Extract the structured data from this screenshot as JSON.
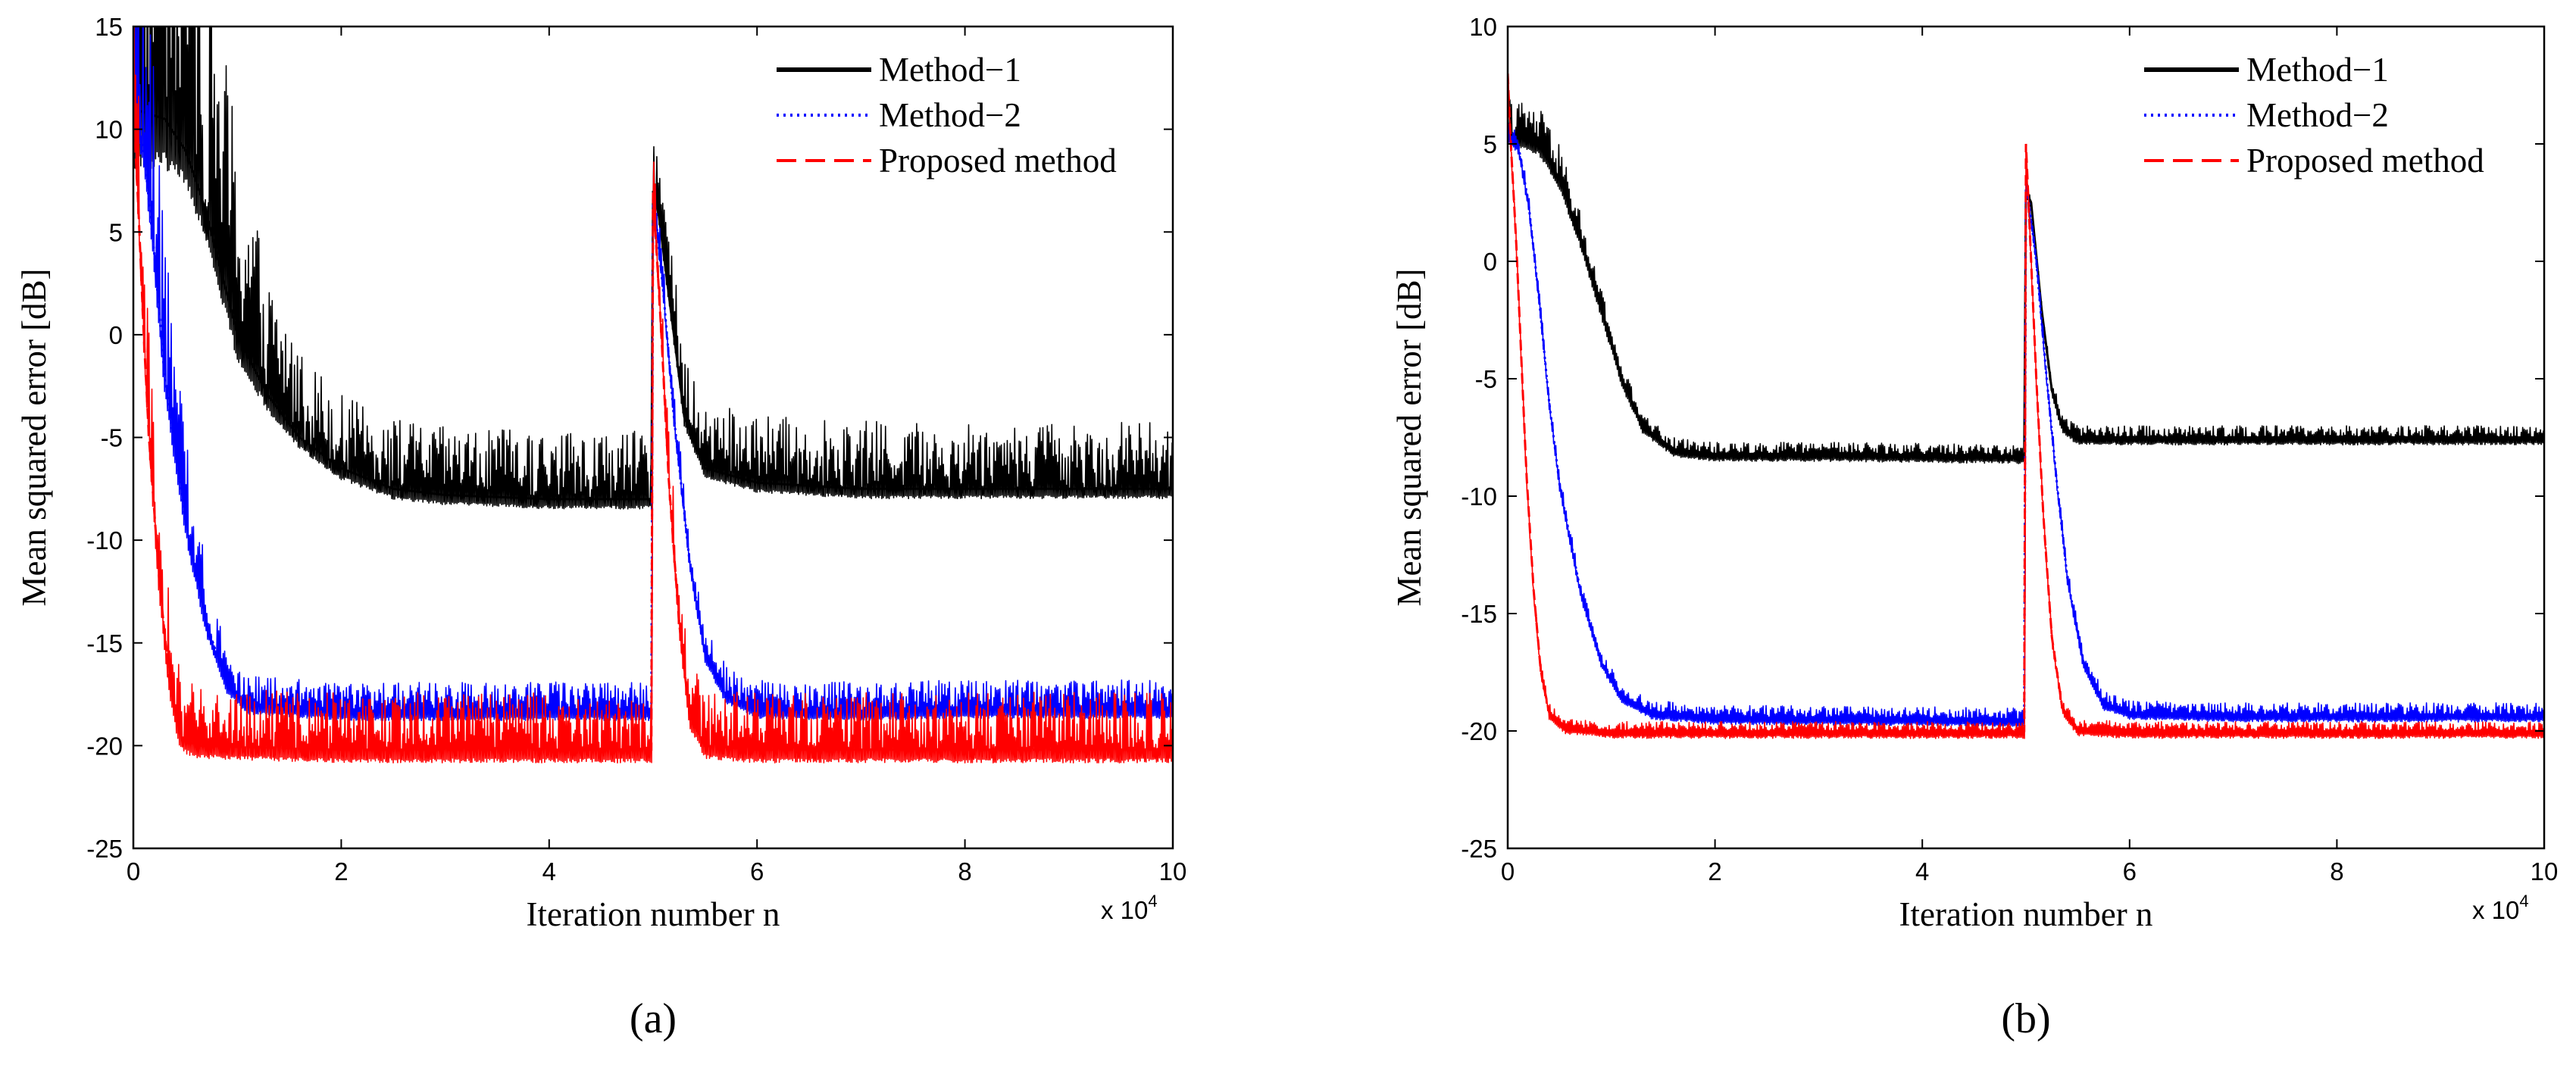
{
  "chart_data": [
    {
      "type": "line",
      "caption": "(a)",
      "xlabel": "Iteration number n",
      "ylabel": "Mean squared error [dB]",
      "x_multiplier": "x 10",
      "x_multiplier_exp": "4",
      "xlim": [
        0,
        10
      ],
      "ylim": [
        -25,
        15
      ],
      "xticks": [
        "0",
        "2",
        "4",
        "6",
        "8",
        "10"
      ],
      "yticks": [
        "15",
        "10",
        "5",
        "0",
        "-5",
        "-10",
        "-15",
        "-20",
        "-25"
      ],
      "legend_position": "top-right",
      "series": [
        {
          "name": "Method−1",
          "color": "#000000",
          "style": "solid",
          "noise_band": [
            [
              0,
              2.0,
              20.0
            ],
            [
              0.3,
              1.5,
              19.0
            ],
            [
              0.6,
              1.0,
              17.0
            ],
            [
              0.8,
              0.9,
              13.0
            ],
            [
              1.0,
              0.8,
              10.0
            ],
            [
              1.3,
              0.5,
              6.0
            ],
            [
              1.6,
              0.35,
              4.5
            ],
            [
              2.0,
              0.35,
              3.6
            ],
            [
              3.0,
              0.3,
              3.3
            ],
            [
              4.99,
              0.3,
              3.3
            ],
            [
              5.3,
              0.3,
              3.3
            ],
            [
              10.0,
              0.3,
              3.3
            ]
          ],
          "points": [
            [
              0,
              11.0
            ],
            [
              0.3,
              10.5
            ],
            [
              0.5,
              9.0
            ],
            [
              0.7,
              6.0
            ],
            [
              1.0,
              0.0
            ],
            [
              1.3,
              -3.0
            ],
            [
              1.6,
              -5.0
            ],
            [
              2.0,
              -6.5
            ],
            [
              2.5,
              -7.5
            ],
            [
              3.0,
              -7.8
            ],
            [
              4.0,
              -8.0
            ],
            [
              4.99,
              -8.0
            ],
            [
              5.0,
              7.0
            ],
            [
              5.05,
              6.0
            ],
            [
              5.15,
              2.0
            ],
            [
              5.3,
              -4.0
            ],
            [
              5.5,
              -6.5
            ],
            [
              6.0,
              -7.2
            ],
            [
              7.0,
              -7.5
            ],
            [
              8.0,
              -7.5
            ],
            [
              9.0,
              -7.5
            ],
            [
              10.0,
              -7.5
            ]
          ]
        },
        {
          "name": "Method−2",
          "color": "#0000ff",
          "style": "dotted",
          "noise_band": [
            [
              0,
              0.5,
              10.0
            ],
            [
              0.2,
              0.6,
              9.0
            ],
            [
              0.4,
              0.6,
              5.0
            ],
            [
              0.7,
              0.4,
              3.0
            ],
            [
              1.0,
              0.3,
              1.4
            ],
            [
              10.0,
              0.3,
              1.4
            ]
          ],
          "points": [
            [
              0,
              11.0
            ],
            [
              0.1,
              9.0
            ],
            [
              0.2,
              4.0
            ],
            [
              0.3,
              -2.0
            ],
            [
              0.5,
              -9.0
            ],
            [
              0.7,
              -14.0
            ],
            [
              0.9,
              -17.0
            ],
            [
              1.1,
              -18.0
            ],
            [
              2.0,
              -18.3
            ],
            [
              4.99,
              -18.3
            ],
            [
              5.0,
              7.0
            ],
            [
              5.1,
              2.0
            ],
            [
              5.2,
              -4.0
            ],
            [
              5.35,
              -11.0
            ],
            [
              5.5,
              -15.5
            ],
            [
              5.7,
              -17.5
            ],
            [
              6.0,
              -18.2
            ],
            [
              7.0,
              -18.3
            ],
            [
              8.0,
              -18.2
            ],
            [
              9.0,
              -18.2
            ],
            [
              10.0,
              -18.2
            ]
          ]
        },
        {
          "name": "Proposed method",
          "color": "#ff0000",
          "style": "dashed",
          "noise_band": [
            [
              0,
              0.5,
              6.0
            ],
            [
              0.2,
              0.6,
              5.0
            ],
            [
              0.4,
              0.5,
              3.5
            ],
            [
              0.6,
              0.4,
              2.8
            ],
            [
              10.0,
              0.4,
              2.8
            ]
          ],
          "points": [
            [
              0,
              11.0
            ],
            [
              0.05,
              6.0
            ],
            [
              0.1,
              0.0
            ],
            [
              0.15,
              -5.0
            ],
            [
              0.25,
              -12.0
            ],
            [
              0.35,
              -17.0
            ],
            [
              0.45,
              -19.5
            ],
            [
              0.6,
              -20.0
            ],
            [
              2.0,
              -20.2
            ],
            [
              4.99,
              -20.2
            ],
            [
              5.0,
              7.0
            ],
            [
              5.08,
              0.0
            ],
            [
              5.15,
              -7.0
            ],
            [
              5.25,
              -14.0
            ],
            [
              5.35,
              -18.5
            ],
            [
              5.5,
              -20.0
            ],
            [
              6.0,
              -20.2
            ],
            [
              7.0,
              -20.2
            ],
            [
              8.0,
              -20.2
            ],
            [
              9.0,
              -20.2
            ],
            [
              10.0,
              -20.2
            ]
          ]
        }
      ]
    },
    {
      "type": "line",
      "caption": "(b)",
      "xlabel": "Iteration number n",
      "ylabel": "Mean squared error [dB]",
      "x_multiplier": "x 10",
      "x_multiplier_exp": "4",
      "xlim": [
        0,
        10
      ],
      "ylim": [
        -25,
        10
      ],
      "xticks": [
        "0",
        "2",
        "4",
        "6",
        "8",
        "10"
      ],
      "yticks": [
        "10",
        "5",
        "0",
        "-5",
        "-10",
        "-15",
        "-20",
        "-25"
      ],
      "legend_position": "top-right",
      "series": [
        {
          "name": "Method−1",
          "color": "#000000",
          "style": "solid",
          "noise_band": [
            [
              0,
              0.3,
              1.5
            ],
            [
              0.4,
              0.3,
              1.6
            ],
            [
              0.8,
              0.25,
              1.0
            ],
            [
              1.3,
              0.2,
              0.5
            ],
            [
              2.0,
              0.2,
              0.5
            ],
            [
              10.0,
              0.2,
              0.5
            ]
          ],
          "points": [
            [
              0,
              5.5
            ],
            [
              0.3,
              5.0
            ],
            [
              0.5,
              3.5
            ],
            [
              0.7,
              1.0
            ],
            [
              0.9,
              -2.0
            ],
            [
              1.1,
              -5.0
            ],
            [
              1.3,
              -7.0
            ],
            [
              1.6,
              -8.0
            ],
            [
              2.0,
              -8.2
            ],
            [
              3.0,
              -8.2
            ],
            [
              4.99,
              -8.3
            ],
            [
              5.0,
              3.0
            ],
            [
              5.05,
              2.5
            ],
            [
              5.15,
              -2.0
            ],
            [
              5.25,
              -5.5
            ],
            [
              5.35,
              -7.0
            ],
            [
              5.5,
              -7.5
            ],
            [
              6.0,
              -7.5
            ],
            [
              7.0,
              -7.5
            ],
            [
              8.0,
              -7.5
            ],
            [
              9.0,
              -7.5
            ],
            [
              10.0,
              -7.5
            ]
          ]
        },
        {
          "name": "Method−2",
          "color": "#0000ff",
          "style": "dotted",
          "noise_band": [
            [
              0,
              0.3,
              0.5
            ],
            [
              0.3,
              0.2,
              0.5
            ],
            [
              10.0,
              0.2,
              0.5
            ]
          ],
          "points": [
            [
              0,
              5.5
            ],
            [
              0.1,
              5.0
            ],
            [
              0.2,
              2.5
            ],
            [
              0.3,
              -1.5
            ],
            [
              0.4,
              -6.0
            ],
            [
              0.5,
              -9.5
            ],
            [
              0.7,
              -14.0
            ],
            [
              0.9,
              -17.0
            ],
            [
              1.1,
              -18.5
            ],
            [
              1.4,
              -19.2
            ],
            [
              2.0,
              -19.4
            ],
            [
              4.99,
              -19.5
            ],
            [
              5.0,
              3.5
            ],
            [
              5.1,
              0.0
            ],
            [
              5.2,
              -5.0
            ],
            [
              5.3,
              -9.5
            ],
            [
              5.4,
              -13.5
            ],
            [
              5.55,
              -17.0
            ],
            [
              5.75,
              -18.8
            ],
            [
              6.0,
              -19.2
            ],
            [
              7.0,
              -19.3
            ],
            [
              8.0,
              -19.3
            ],
            [
              9.0,
              -19.3
            ],
            [
              10.0,
              -19.3
            ]
          ]
        },
        {
          "name": "Proposed method",
          "color": "#ff0000",
          "style": "dashed",
          "noise_band": [
            [
              0,
              0.3,
              0.5
            ],
            [
              0.3,
              0.2,
              0.4
            ],
            [
              10.0,
              0.2,
              0.4
            ]
          ],
          "points": [
            [
              0,
              8.0
            ],
            [
              0.03,
              5.0
            ],
            [
              0.08,
              1.0
            ],
            [
              0.13,
              -4.0
            ],
            [
              0.18,
              -9.0
            ],
            [
              0.25,
              -14.0
            ],
            [
              0.32,
              -17.5
            ],
            [
              0.4,
              -19.2
            ],
            [
              0.55,
              -19.8
            ],
            [
              1.0,
              -20.0
            ],
            [
              4.99,
              -20.0
            ],
            [
              5.0,
              5.0
            ],
            [
              5.05,
              0.0
            ],
            [
              5.1,
              -5.0
            ],
            [
              5.17,
              -11.0
            ],
            [
              5.25,
              -16.0
            ],
            [
              5.35,
              -19.0
            ],
            [
              5.5,
              -19.9
            ],
            [
              6.0,
              -20.0
            ],
            [
              7.0,
              -20.0
            ],
            [
              8.0,
              -20.0
            ],
            [
              9.0,
              -20.0
            ],
            [
              10.0,
              -20.0
            ]
          ]
        }
      ]
    }
  ]
}
